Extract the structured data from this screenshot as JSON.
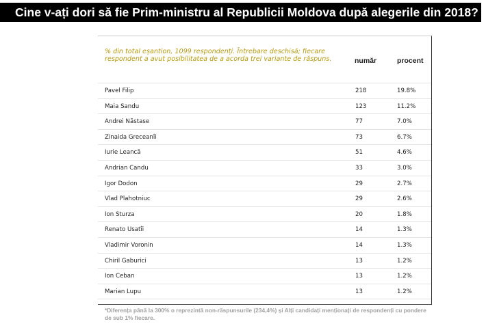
{
  "title": "Cine v-ați dori să fie Prim-ministru al Republicii Moldova după alegerile din 2018?",
  "table": {
    "note": "% din total eșantion, 1099 respondenți. Întrebare deschisă; fiecare respondent a avut posibilitatea de a acorda trei variante de răspuns.",
    "col_number": "număr",
    "col_percent": "procent",
    "rows": [
      {
        "name": "Pavel Filip",
        "number": "218",
        "percent": "19.8%"
      },
      {
        "name": "Maia Sandu",
        "number": "123",
        "percent": "11.2%"
      },
      {
        "name": "Andrei Năstase",
        "number": "77",
        "percent": "7.0%"
      },
      {
        "name": "Zinaida Greceanîi",
        "number": "73",
        "percent": "6.7%"
      },
      {
        "name": "Iurie Leancă",
        "number": "51",
        "percent": "4.6%"
      },
      {
        "name": "Andrian Candu",
        "number": "33",
        "percent": "3.0%"
      },
      {
        "name": "Igor Dodon",
        "number": "29",
        "percent": "2.7%"
      },
      {
        "name": "Vlad Plahotniuc",
        "number": "29",
        "percent": "2.6%"
      },
      {
        "name": "Ion Sturza",
        "number": "20",
        "percent": "1.8%"
      },
      {
        "name": "Renato Usatîi",
        "number": "14",
        "percent": "1.3%"
      },
      {
        "name": "Vladimir Voronin",
        "number": "14",
        "percent": "1.3%"
      },
      {
        "name": "Chiril Gaburici",
        "number": "13",
        "percent": "1.2%"
      },
      {
        "name": "Ion Ceban",
        "number": "13",
        "percent": "1.2%"
      },
      {
        "name": "Marian Lupu",
        "number": "13",
        "percent": "1.2%"
      }
    ]
  },
  "footnote": "*Diferența până la 300% o reprezintă non-răspunsurile (234,4%) și Alți candidați menționați de respondenți cu pondere de sub 1% fiecare."
}
